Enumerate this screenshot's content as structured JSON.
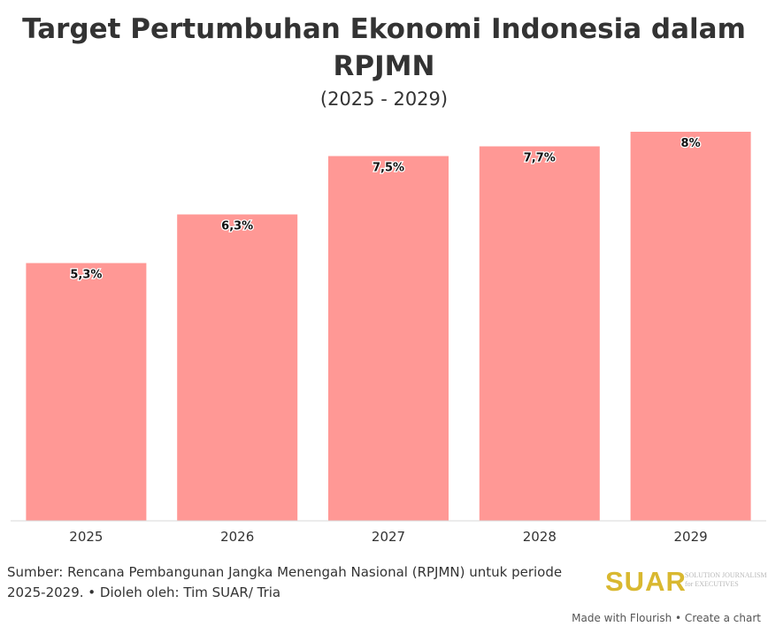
{
  "header": {
    "title": "Target Pertumbuhan Ekonomi Indonesia dalam RPJMN",
    "subtitle": "(2025 - 2029)"
  },
  "footer": {
    "source_note": "Sumber: Rencana Pembangunan Jangka Menengah Nasional (RPJMN) untuk periode 2025-2029. • Dioleh oleh: Tim SUAR/ Tria",
    "credit": "Made with Flourish • Create a chart"
  },
  "logo": {
    "wordmark": "SUAR",
    "tagline_line1": "SOLUTION JOURNALISM",
    "tagline_line2": "for EXECUTIVES"
  },
  "colors": {
    "bar": "#ff9895",
    "text": "#333333",
    "logo": "#d9b830"
  },
  "chart_data": {
    "type": "bar",
    "title": "Target Pertumbuhan Ekonomi Indonesia dalam RPJMN",
    "subtitle": "(2025 - 2029)",
    "categories": [
      "2025",
      "2026",
      "2027",
      "2028",
      "2029"
    ],
    "values": [
      5.3,
      6.3,
      7.5,
      7.7,
      8
    ],
    "data_labels": [
      "5,3%",
      "6,3%",
      "7,5%",
      "7,7%",
      "8%"
    ],
    "ylim": [
      0,
      8
    ],
    "grid": false,
    "legend": "none"
  }
}
